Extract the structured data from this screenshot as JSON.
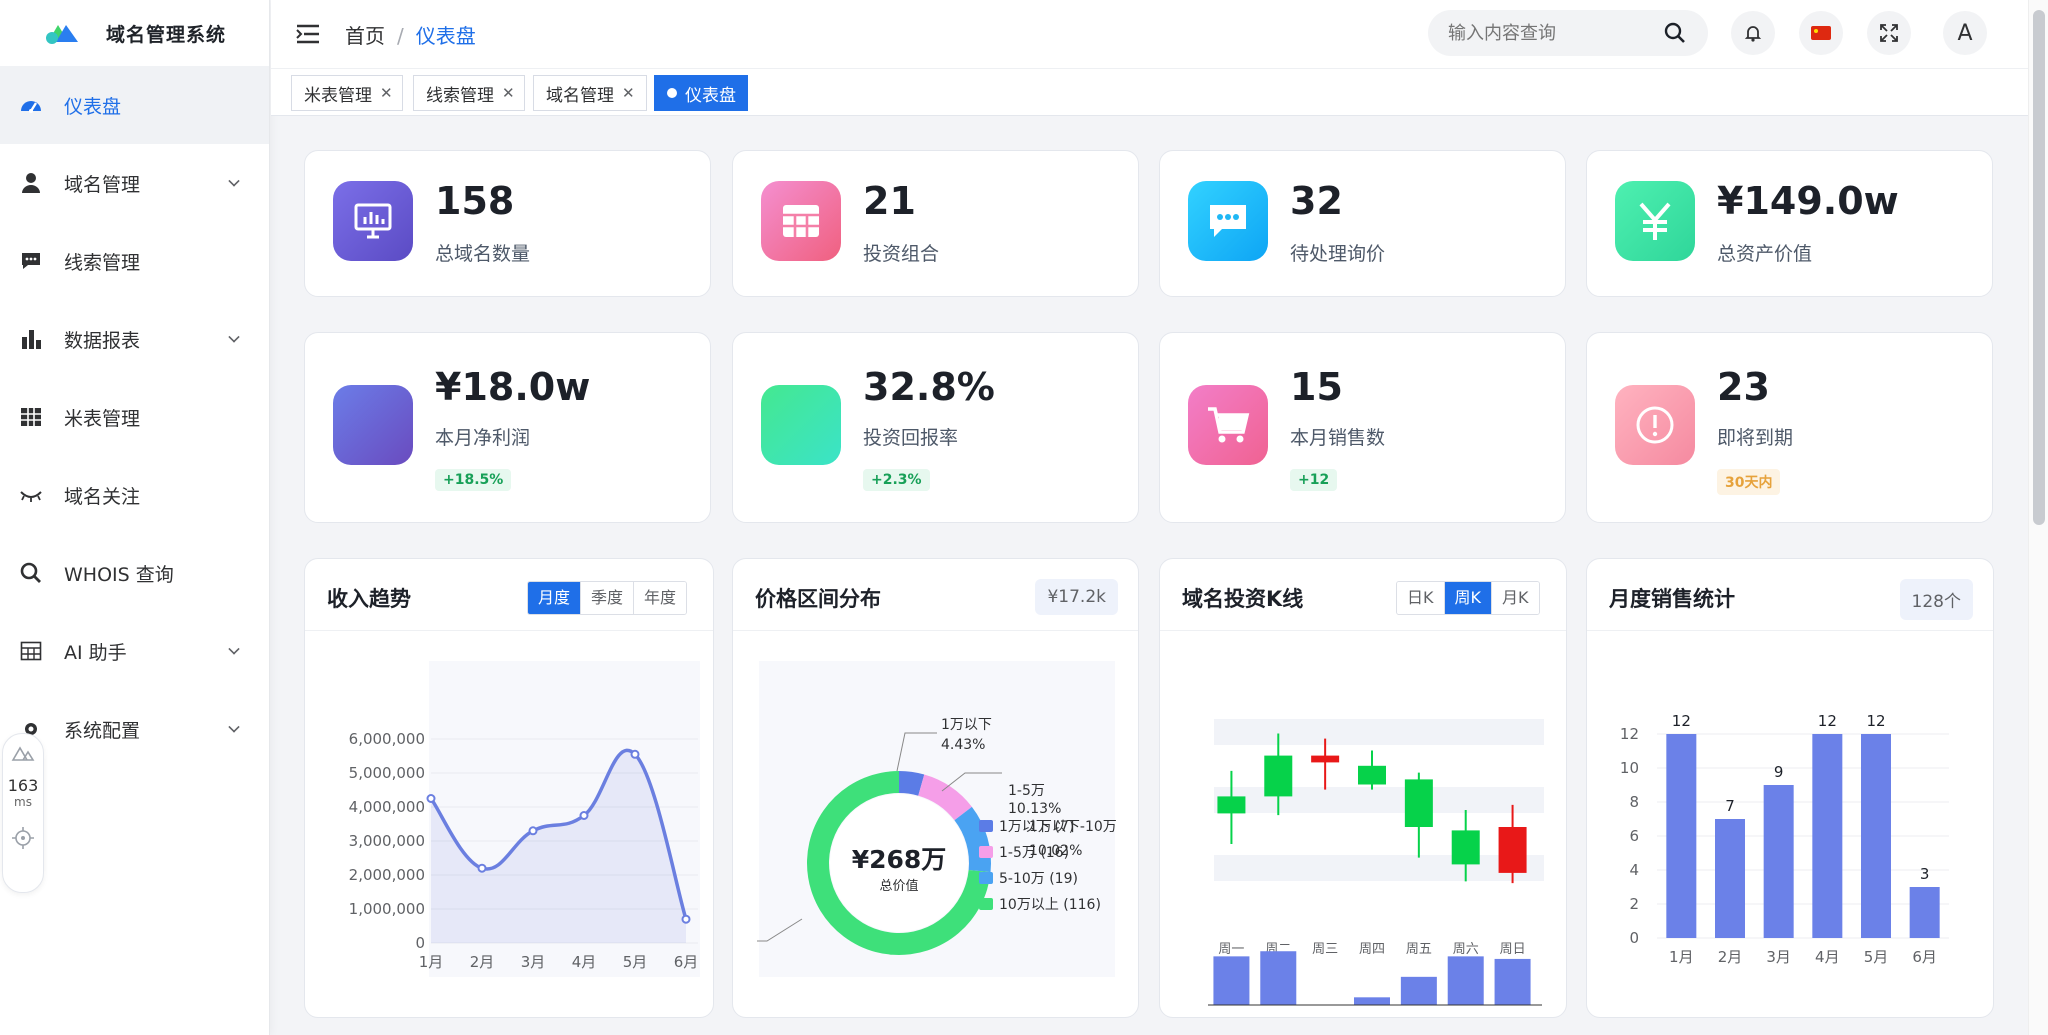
{
  "app": {
    "title": "域名管理系统"
  },
  "sidebar": {
    "items": [
      {
        "label": "仪表盘",
        "icon": "dashboard-icon",
        "active": true
      },
      {
        "label": "域名管理",
        "icon": "user-icon",
        "expandable": true
      },
      {
        "label": "线索管理",
        "icon": "chat-icon"
      },
      {
        "label": "数据报表",
        "icon": "bar-chart-icon",
        "expandable": true
      },
      {
        "label": "米表管理",
        "icon": "grid-icon"
      },
      {
        "label": "域名关注",
        "icon": "eye-closed-icon"
      },
      {
        "label": "WHOIS 查询",
        "icon": "search-icon"
      },
      {
        "label": "AI 助手",
        "icon": "table-icon",
        "expandable": true
      },
      {
        "label": "系统配置",
        "icon": "settings-icon",
        "expandable": true
      }
    ],
    "perf": {
      "value": "163",
      "unit": "ms"
    }
  },
  "header": {
    "breadcrumb": [
      "首页",
      "仪表盘"
    ],
    "search_placeholder": "输入内容查询"
  },
  "tabs": [
    {
      "label": "米表管理",
      "closable": true
    },
    {
      "label": "线索管理",
      "closable": true
    },
    {
      "label": "域名管理",
      "closable": true
    },
    {
      "label": "仪表盘",
      "active": true
    }
  ],
  "stats_row1": [
    {
      "value": "158",
      "label": "总域名数量",
      "icon": "monitor-chart-icon",
      "gradient": [
        "#7b6fe8",
        "#5b4bc4"
      ]
    },
    {
      "value": "21",
      "label": "投资组合",
      "icon": "table-grid-icon",
      "gradient": [
        "#f48fd0",
        "#f0607f"
      ]
    },
    {
      "value": "32",
      "label": "待处理询价",
      "icon": "message-icon",
      "gradient": [
        "#32d2ff",
        "#0ea5f5"
      ]
    },
    {
      "value": "¥149.0w",
      "label": "总资产价值",
      "icon": "yen-icon",
      "gradient": [
        "#4ef0b0",
        "#2fd69a"
      ]
    }
  ],
  "stats_row2": [
    {
      "value": "¥18.0w",
      "label": "本月净利润",
      "icon": "blank",
      "gradient": [
        "#6b7de8",
        "#6a4bbf"
      ],
      "badge": "+18.5%",
      "badge_color": "#18a058",
      "badge_bg": "#e7f8ef"
    },
    {
      "value": "32.8%",
      "label": "投资回报率",
      "icon": "blank",
      "gradient": [
        "#44e890",
        "#3be3c8"
      ],
      "badge": "+2.3%",
      "badge_color": "#18a058",
      "badge_bg": "#e7f8ef"
    },
    {
      "value": "15",
      "label": "本月销售数",
      "icon": "cart-icon",
      "gradient": [
        "#f37ec8",
        "#f06292"
      ],
      "badge": "+12",
      "badge_color": "#18a058",
      "badge_bg": "#e7f8ef"
    },
    {
      "value": "23",
      "label": "即将到期",
      "icon": "alert-icon",
      "gradient": [
        "#ffb3c0",
        "#f58aa0"
      ],
      "badge": "30天内",
      "badge_color": "#e6a23c",
      "badge_bg": "#fdf3e3"
    }
  ],
  "panels": {
    "income": {
      "title": "收入趋势",
      "segments": [
        "月度",
        "季度",
        "年度"
      ],
      "active": 0
    },
    "price": {
      "title": "价格区间分布",
      "pill": "¥17.2k",
      "center_value": "¥268万",
      "center_label": "总价值"
    },
    "kline": {
      "title": "域名投资K线",
      "segments": [
        "日K",
        "周K",
        "月K"
      ],
      "active": 1
    },
    "sales": {
      "title": "月度销售统计",
      "pill": "128个"
    }
  },
  "chart_data": [
    {
      "type": "area",
      "categories": [
        "1月",
        "2月",
        "3月",
        "4月",
        "5月",
        "6月"
      ],
      "values": [
        4250000,
        2200000,
        3300000,
        3750000,
        5550000,
        700000
      ],
      "ylim": [
        0,
        6000000
      ],
      "yticks": [
        "0",
        "1,000,000",
        "2,000,000",
        "3,000,000",
        "4,000,000",
        "5,000,000",
        "6,000,000"
      ],
      "color": "#6b7fe0"
    },
    {
      "type": "pie",
      "slices": [
        {
          "label": "1万以下",
          "value": 7,
          "percent": "4.43%",
          "color": "#5b7ce6"
        },
        {
          "label": "1-5万",
          "value": 16,
          "percent": "10.13%",
          "color": "#f59ee8"
        },
        {
          "label": "5-10万",
          "value": 19,
          "color": "#4aa3f2"
        },
        {
          "label": "10万以上",
          "value": 116,
          "color": "#3ee07a"
        }
      ],
      "callouts": [
        "1万以下",
        "4.43%",
        "1-5万",
        "10.13%"
      ],
      "legend": [
        "1万以下 (7)",
        "1-5万 (16)",
        "5-10万 (19)",
        "10万以上 (116)"
      ],
      "overlap_text": [
        "1万以下-10万",
        "10.02%"
      ]
    },
    {
      "type": "candlestick",
      "categories": [
        "周一",
        "周二",
        "周三",
        "周四",
        "周五",
        "周六",
        "周日"
      ],
      "candles": [
        {
          "open": 58,
          "close": 48,
          "high": 73,
          "low": 30
        },
        {
          "open": 82,
          "close": 58,
          "high": 95,
          "low": 47
        },
        {
          "open": 78,
          "close": 82,
          "high": 92,
          "low": 62
        },
        {
          "open": 76,
          "close": 65,
          "high": 85,
          "low": 62
        },
        {
          "open": 68,
          "close": 40,
          "high": 72,
          "low": 22
        },
        {
          "open": 38,
          "close": 18,
          "high": 50,
          "low": 8
        },
        {
          "open": 13,
          "close": 40,
          "high": 53,
          "low": 7
        }
      ],
      "volumes": [
        38,
        42,
        0,
        6,
        22,
        38,
        36
      ],
      "up_color": "#e81818",
      "down_color": "#06d24a"
    },
    {
      "type": "bar",
      "categories": [
        "1月",
        "2月",
        "3月",
        "4月",
        "5月",
        "6月"
      ],
      "values": [
        12,
        7,
        9,
        12,
        12,
        3
      ],
      "ylim": [
        0,
        12
      ],
      "yticks": [
        "0",
        "2",
        "4",
        "6",
        "8",
        "10",
        "12"
      ],
      "color": "#6b81e8"
    }
  ]
}
